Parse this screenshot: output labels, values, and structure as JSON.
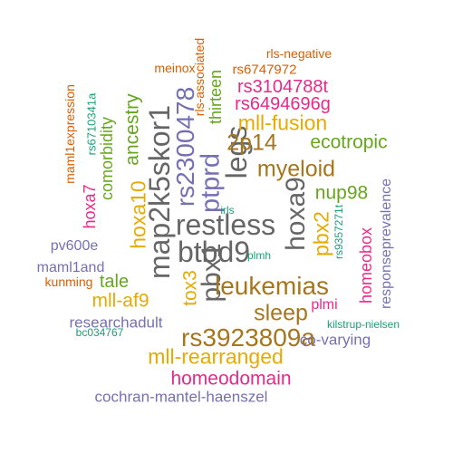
{
  "palette": {
    "green": "#1b9e77",
    "orange": "#d95f02",
    "purple": "#7570b3",
    "magenta": "#e7298a",
    "olive": "#66a61e",
    "gold": "#e6ab02",
    "brown": "#a6761d",
    "gray": "#666666"
  },
  "words": [
    {
      "text": "restless",
      "color": "gray",
      "weight": 28,
      "vertical": false
    },
    {
      "text": "btbd9",
      "color": "gray",
      "weight": 28,
      "vertical": false
    },
    {
      "text": "map2k5skor1",
      "color": "gray",
      "weight": 28,
      "vertical": true
    },
    {
      "text": "legs",
      "color": "gray",
      "weight": 28,
      "vertical": true
    },
    {
      "text": "hoxa9",
      "color": "gray",
      "weight": 26,
      "vertical": true
    },
    {
      "text": "pbx1",
      "color": "gray",
      "weight": 26,
      "vertical": true
    },
    {
      "text": "ptprd",
      "color": "purple",
      "weight": 25,
      "vertical": true
    },
    {
      "text": "rs2300478",
      "color": "purple",
      "weight": 24,
      "vertical": true
    },
    {
      "text": "leukemias",
      "color": "brown",
      "weight": 24,
      "vertical": false
    },
    {
      "text": "rs3923809a",
      "color": "brown",
      "weight": 24,
      "vertical": false
    },
    {
      "text": "myeloid",
      "color": "brown",
      "weight": 22,
      "vertical": false
    },
    {
      "text": "2p14",
      "color": "brown",
      "weight": 22,
      "vertical": false
    },
    {
      "text": "sleep",
      "color": "brown",
      "weight": 22,
      "vertical": false
    },
    {
      "text": "mll-fusion",
      "color": "gold",
      "weight": 20,
      "vertical": false
    },
    {
      "text": "mll-rearranged",
      "color": "gold",
      "weight": 20,
      "vertical": false
    },
    {
      "text": "hoxa10",
      "color": "gold",
      "weight": 20,
      "vertical": true
    },
    {
      "text": "pbx2",
      "color": "gold",
      "weight": 20,
      "vertical": true
    },
    {
      "text": "tox3",
      "color": "gold",
      "weight": 18,
      "vertical": true
    },
    {
      "text": "mll-af9",
      "color": "gold",
      "weight": 18,
      "vertical": false
    },
    {
      "text": "ancestry",
      "color": "olive",
      "weight": 18,
      "vertical": true
    },
    {
      "text": "ecotropic",
      "color": "olive",
      "weight": 18,
      "vertical": false
    },
    {
      "text": "nup98",
      "color": "olive",
      "weight": 18,
      "vertical": false
    },
    {
      "text": "comorbidity",
      "color": "olive",
      "weight": 16,
      "vertical": true
    },
    {
      "text": "tale",
      "color": "olive",
      "weight": 17,
      "vertical": false
    },
    {
      "text": "thirteen",
      "color": "olive",
      "weight": 16,
      "vertical": true
    },
    {
      "text": "homeodomain",
      "color": "magenta",
      "weight": 18,
      "vertical": false
    },
    {
      "text": "rs3104788t",
      "color": "magenta",
      "weight": 17,
      "vertical": false
    },
    {
      "text": "rs6494696g",
      "color": "magenta",
      "weight": 17,
      "vertical": false
    },
    {
      "text": "homeobox",
      "color": "magenta",
      "weight": 16,
      "vertical": true
    },
    {
      "text": "hoxa7",
      "color": "magenta",
      "weight": 16,
      "vertical": true
    },
    {
      "text": "plmi",
      "color": "magenta",
      "weight": 14,
      "vertical": false
    },
    {
      "text": "rs6747972",
      "color": "orange",
      "weight": 13,
      "vertical": false
    },
    {
      "text": "rls-negative",
      "color": "orange",
      "weight": 12,
      "vertical": false
    },
    {
      "text": "rls-associated",
      "color": "orange",
      "weight": 12,
      "vertical": true
    },
    {
      "text": "meinox",
      "color": "orange",
      "weight": 12,
      "vertical": false
    },
    {
      "text": "maml1expression",
      "color": "orange",
      "weight": 12,
      "vertical": true
    },
    {
      "text": "kunming",
      "color": "orange",
      "weight": 12,
      "vertical": false
    },
    {
      "text": "cochran-mantel-haenszel",
      "color": "purple",
      "weight": 15,
      "vertical": false
    },
    {
      "text": "researchadult",
      "color": "purple",
      "weight": 15,
      "vertical": false
    },
    {
      "text": "co-varying",
      "color": "purple",
      "weight": 15,
      "vertical": false
    },
    {
      "text": "responseprevalence",
      "color": "purple",
      "weight": 14,
      "vertical": true
    },
    {
      "text": "pv600e",
      "color": "purple",
      "weight": 14,
      "vertical": false
    },
    {
      "text": "maml1and",
      "color": "purple",
      "weight": 14,
      "vertical": false
    },
    {
      "text": "rs6710341a",
      "color": "green",
      "weight": 11,
      "vertical": true
    },
    {
      "text": "rs9357271t",
      "color": "green",
      "weight": 10,
      "vertical": true
    },
    {
      "text": "irls",
      "color": "green",
      "weight": 10,
      "vertical": false
    },
    {
      "text": "plmh",
      "color": "green",
      "weight": 10,
      "vertical": false
    },
    {
      "text": "kilstrup-nielsen",
      "color": "green",
      "weight": 10,
      "vertical": false
    },
    {
      "text": "bc034767",
      "color": "green",
      "weight": 10,
      "vertical": false
    }
  ]
}
